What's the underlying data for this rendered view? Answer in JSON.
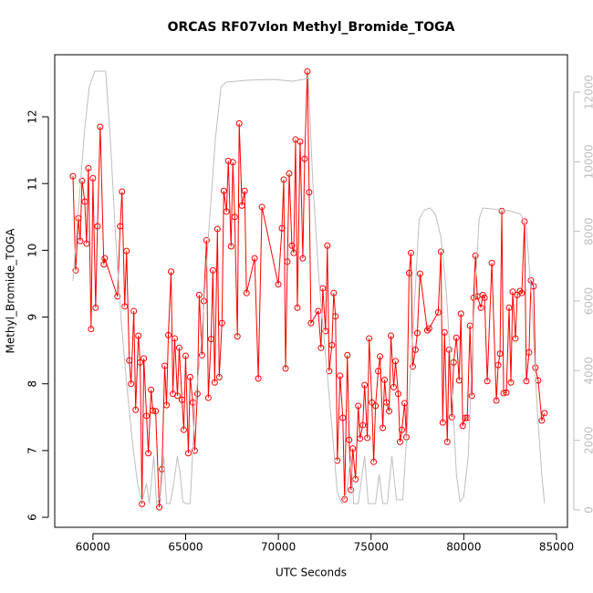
{
  "chart_data": {
    "type": "line",
    "title": "ORCAS RF07vlon Methyl_Bromide_TOGA",
    "xlabel": "UTC Seconds",
    "ylabel": "Methyl_Bromide_TOGA",
    "xlim": [
      57940,
      85590
    ],
    "ylim": [
      5.85,
      12.93
    ],
    "y2lim": [
      -500,
      13075
    ],
    "xticks": [
      60000,
      65000,
      70000,
      75000,
      80000,
      85000
    ],
    "yticks": [
      6,
      7,
      8,
      9,
      10,
      11,
      12
    ],
    "y2ticks": [
      0,
      2000,
      4000,
      6000,
      8000,
      10000,
      12000
    ],
    "y2color": "#bebebe",
    "series": [
      {
        "color": "#ff0000",
        "marker": "circle",
        "x": [
          58922,
          59069,
          59216,
          59314,
          59412,
          59559,
          59657,
          59755,
          59902,
          60000,
          60147,
          60245,
          60392,
          60588,
          60637,
          61323,
          61470,
          61568,
          61715,
          61813,
          61960,
          62058,
          62205,
          62303,
          62450,
          62548,
          62646,
          62744,
          62891,
          62989,
          63136,
          63234,
          63381,
          63577,
          63724,
          63871,
          63969,
          64067,
          64214,
          64312,
          64410,
          64557,
          64655,
          64802,
          64900,
          64998,
          65145,
          65243,
          65390,
          65488,
          65635,
          65733,
          65880,
          65978,
          66125,
          66223,
          66370,
          66468,
          66566,
          66713,
          66811,
          66958,
          67056,
          67203,
          67301,
          67448,
          67546,
          67644,
          67791,
          67889,
          68036,
          68183,
          68281,
          68722,
          68918,
          69114,
          69996,
          70192,
          70290,
          70388,
          70486,
          70584,
          70731,
          70829,
          70927,
          71025,
          71172,
          71319,
          71417,
          71564,
          71662,
          71760,
          72152,
          72299,
          72397,
          72544,
          72642,
          72740,
          72887,
          72985,
          73083,
          73181,
          73328,
          73475,
          73573,
          73720,
          73818,
          73916,
          74014,
          74161,
          74308,
          74406,
          74553,
          74651,
          74798,
          74896,
          75043,
          75141,
          75239,
          75386,
          75484,
          75631,
          75729,
          75827,
          75974,
          76072,
          76219,
          76317,
          76464,
          76562,
          76660,
          76807,
          76905,
          77052,
          77150,
          77248,
          77395,
          77493,
          77640,
          78032,
          78130,
          78620,
          78767,
          78865,
          78963,
          79110,
          79208,
          79355,
          79453,
          79600,
          79747,
          79845,
          79943,
          80090,
          80188,
          80335,
          80433,
          80531,
          80629,
          80727,
          80923,
          81021,
          81119,
          81266,
          81511,
          81756,
          81854,
          81952,
          82050,
          82148,
          82295,
          82442,
          82540,
          82638,
          82785,
          82883,
          83030,
          83128,
          83275,
          83373,
          83520,
          83618,
          83765,
          83863,
          84010,
          84206,
          84353
        ],
        "values": [
          11.11,
          9.7,
          10.48,
          10.14,
          11.04,
          10.73,
          10.1,
          11.23,
          8.82,
          11.08,
          9.14,
          10.36,
          11.85,
          9.79,
          9.88,
          9.31,
          10.36,
          10.88,
          9.16,
          9.99,
          8.35,
          8.0,
          9.09,
          7.61,
          8.72,
          8.32,
          6.2,
          8.38,
          7.52,
          6.96,
          7.91,
          7.6,
          7.59,
          6.15,
          6.72,
          8.27,
          7.68,
          8.73,
          9.68,
          7.85,
          8.68,
          7.82,
          8.54,
          7.76,
          7.31,
          8.42,
          6.96,
          8.1,
          7.72,
          7.0,
          7.85,
          9.33,
          8.43,
          9.24,
          10.15,
          7.79,
          8.67,
          9.7,
          8.02,
          10.32,
          8.1,
          8.91,
          10.89,
          10.58,
          11.34,
          10.06,
          11.32,
          10.5,
          8.71,
          11.9,
          10.67,
          10.89,
          9.36,
          9.88,
          8.08,
          10.65,
          9.49,
          10.33,
          11.06,
          8.23,
          9.83,
          11.15,
          10.07,
          9.96,
          11.66,
          9.14,
          11.63,
          9.88,
          11.37,
          12.68,
          10.87,
          8.91,
          9.09,
          8.54,
          9.43,
          8.79,
          10.07,
          8.19,
          8.58,
          9.36,
          9.01,
          6.85,
          8.12,
          7.49,
          6.27,
          8.43,
          7.16,
          6.41,
          7.03,
          6.57,
          7.67,
          7.18,
          7.38,
          7.98,
          7.19,
          8.68,
          7.72,
          6.83,
          7.67,
          8.19,
          8.41,
          7.34,
          8.06,
          7.72,
          7.59,
          8.72,
          7.95,
          8.34,
          7.85,
          7.13,
          7.31,
          7.71,
          7.2,
          9.66,
          9.96,
          8.26,
          8.51,
          8.76,
          9.65,
          8.8,
          8.83,
          9.07,
          9.98,
          7.42,
          8.77,
          7.13,
          8.51,
          7.5,
          8.32,
          8.69,
          8.05,
          9.05,
          7.37,
          7.49,
          7.49,
          8.87,
          7.82,
          9.29,
          9.92,
          9.31,
          9.14,
          9.33,
          9.29,
          8.04,
          9.81,
          7.75,
          8.28,
          8.45,
          10.59,
          7.86,
          7.87,
          9.14,
          8.02,
          9.38,
          8.68,
          9.33,
          9.39,
          9.36,
          10.43,
          8.04,
          8.47,
          9.55,
          9.46,
          8.24,
          8.05,
          7.45,
          7.56
        ]
      },
      {
        "color": "#bebebe",
        "axis": "y2",
        "x": [
          58922,
          59216,
          59559,
          59804,
          60098,
          60686,
          60931,
          61225,
          61519,
          61813,
          62107,
          62401,
          62646,
          62891,
          63038,
          63283,
          63430,
          63626,
          63822,
          63969,
          64165,
          64361,
          64557,
          64704,
          64851,
          64998,
          65243,
          65488,
          65831,
          66223,
          66615,
          66909,
          67203,
          68281,
          69751,
          70731,
          71368,
          71613,
          71858,
          72201,
          72593,
          72936,
          73181,
          73426,
          73671,
          73916,
          74063,
          74308,
          74651,
          74847,
          75239,
          75435,
          75631,
          75876,
          76121,
          76366,
          76709,
          77003,
          77297,
          77591,
          77885,
          78179,
          78473,
          78767,
          79061,
          79355,
          79600,
          79796,
          79992,
          80237,
          80531,
          80825,
          81021,
          81511,
          82491,
          83079,
          83373,
          83667,
          83961,
          84206,
          84353
        ],
        "values": [
          6576,
          8620,
          10978,
          12157,
          12602,
          12602,
          10716,
          7834,
          5476,
          3642,
          2070,
          760,
          236,
          760,
          183,
          1546,
          183,
          367,
          1546,
          183,
          183,
          760,
          1546,
          1022,
          236,
          183,
          183,
          2856,
          4690,
          7834,
          10716,
          12157,
          12288,
          12340,
          12366,
          12314,
          12366,
          12419,
          9406,
          6524,
          4166,
          2070,
          498,
          183,
          498,
          1546,
          183,
          183,
          1546,
          183,
          183,
          1022,
          183,
          183,
          1546,
          288,
          288,
          2856,
          5476,
          8358,
          8620,
          8672,
          8489,
          7834,
          6262,
          3642,
          1022,
          236,
          367,
          1546,
          5476,
          8358,
          8672,
          8646,
          8594,
          8489,
          8096,
          6000,
          2856,
          1022,
          183
        ]
      }
    ]
  }
}
